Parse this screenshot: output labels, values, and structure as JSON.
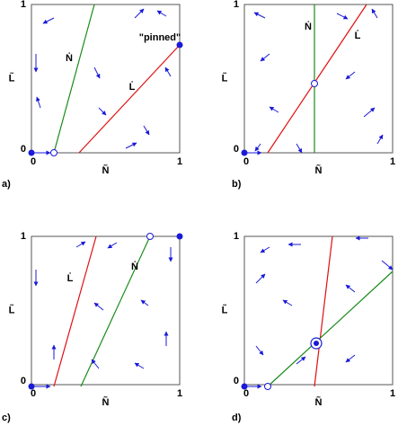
{
  "panels": [
    {
      "label": "a)",
      "x_label": "Ñ",
      "y_label": "L̃",
      "x_ticks": [
        "0",
        "1"
      ],
      "y_ticks": [
        "0",
        "1"
      ],
      "curve_labels": [
        "Ṅ",
        "L̇"
      ],
      "annotation": "\"pinned\""
    },
    {
      "label": "b)",
      "x_label": "Ñ",
      "y_label": "L̃",
      "x_ticks": [
        "0",
        "1"
      ],
      "y_ticks": [
        "0",
        "1"
      ],
      "curve_labels": [
        "Ṅ",
        "L̇"
      ]
    },
    {
      "label": "c)",
      "x_label": "Ñ",
      "y_label": "L̃",
      "x_ticks": [
        "0",
        "1"
      ],
      "y_ticks": [
        "0",
        "1"
      ],
      "curve_labels": [
        "L̇",
        "Ṅ"
      ]
    },
    {
      "label": "d)",
      "x_label": "Ñ",
      "y_label": "L̃",
      "x_ticks": [
        "0",
        "1"
      ],
      "y_ticks": [
        "0",
        "1"
      ]
    }
  ]
}
